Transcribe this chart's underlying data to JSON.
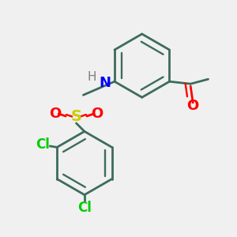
{
  "bg_color": "#f0f0f0",
  "bond_color": "#3d6b5e",
  "bond_width": 2.0,
  "atom_colors": {
    "N": "#0000ff",
    "H": "#808080",
    "S": "#cccc00",
    "O": "#ff0000",
    "Cl": "#00cc00",
    "C": "#3d6b5e"
  },
  "font_size_atoms": 13,
  "font_size_H": 11
}
